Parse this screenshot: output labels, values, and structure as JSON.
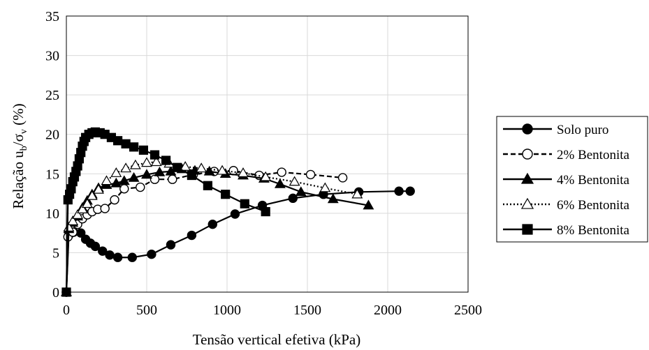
{
  "chart_data": {
    "type": "scatter",
    "title": "",
    "xlabel": "Tensão vertical efetiva (kPa)",
    "ylabel": {
      "main": "Relação u",
      "sub1": "b",
      "mid": "/σ",
      "sub2": "v",
      "end": " (%)"
    },
    "xlim": [
      0,
      2500
    ],
    "ylim": [
      0,
      35
    ],
    "xticks": [
      "0",
      "500",
      "1000",
      "1500",
      "2000",
      "2500"
    ],
    "yticks": [
      "0",
      "5",
      "10",
      "15",
      "20",
      "25",
      "30",
      "35"
    ],
    "grid": true,
    "legend_position": "right",
    "series": [
      {
        "name": "Solo puro",
        "marker": "circle",
        "fill": "filled",
        "dash": "solid",
        "points": [
          [
            0,
            0
          ],
          [
            15,
            7.2
          ],
          [
            45,
            7.6
          ],
          [
            90,
            7.5
          ],
          [
            120,
            6.7
          ],
          [
            150,
            6.2
          ],
          [
            180,
            5.8
          ],
          [
            225,
            5.2
          ],
          [
            270,
            4.7
          ],
          [
            320,
            4.4
          ],
          [
            410,
            4.4
          ],
          [
            530,
            4.8
          ],
          [
            650,
            6.0
          ],
          [
            780,
            7.2
          ],
          [
            910,
            8.6
          ],
          [
            1050,
            9.9
          ],
          [
            1220,
            11.0
          ],
          [
            1410,
            11.9
          ],
          [
            1600,
            12.4
          ],
          [
            1820,
            12.7
          ],
          [
            2070,
            12.8
          ],
          [
            2140,
            12.8
          ]
        ]
      },
      {
        "name": "2% Bentonita",
        "marker": "circle",
        "fill": "open",
        "dash": "dashed",
        "points": [
          [
            0,
            0
          ],
          [
            10,
            7.0
          ],
          [
            40,
            7.6
          ],
          [
            70,
            8.6
          ],
          [
            100,
            9.3
          ],
          [
            130,
            9.8
          ],
          [
            160,
            10.2
          ],
          [
            195,
            10.5
          ],
          [
            240,
            10.6
          ],
          [
            300,
            11.7
          ],
          [
            360,
            13.1
          ],
          [
            460,
            13.3
          ],
          [
            550,
            14.3
          ],
          [
            660,
            14.3
          ],
          [
            790,
            14.9
          ],
          [
            920,
            15.3
          ],
          [
            1040,
            15.4
          ],
          [
            1200,
            14.8
          ],
          [
            1340,
            15.2
          ],
          [
            1520,
            14.9
          ],
          [
            1720,
            14.5
          ]
        ]
      },
      {
        "name": "4% Bentonita",
        "marker": "triangle",
        "fill": "filled",
        "dash": "solid",
        "points": [
          [
            0,
            0
          ],
          [
            15,
            8.0
          ],
          [
            40,
            8.8
          ],
          [
            70,
            9.6
          ],
          [
            100,
            10.7
          ],
          [
            130,
            11.6
          ],
          [
            160,
            12.4
          ],
          [
            200,
            13.2
          ],
          [
            250,
            13.6
          ],
          [
            310,
            13.8
          ],
          [
            360,
            14.1
          ],
          [
            420,
            14.5
          ],
          [
            500,
            14.9
          ],
          [
            580,
            15.2
          ],
          [
            650,
            15.3
          ],
          [
            720,
            15.6
          ],
          [
            800,
            15.4
          ],
          [
            890,
            15.3
          ],
          [
            990,
            15.0
          ],
          [
            1100,
            14.8
          ],
          [
            1230,
            14.4
          ],
          [
            1330,
            13.7
          ],
          [
            1460,
            12.7
          ],
          [
            1660,
            11.8
          ],
          [
            1880,
            11.0
          ]
        ]
      },
      {
        "name": "6% Bentonita",
        "marker": "triangle",
        "fill": "open",
        "dash": "dotted",
        "points": [
          [
            0,
            0
          ],
          [
            15,
            8.2
          ],
          [
            40,
            9.0
          ],
          [
            70,
            9.8
          ],
          [
            100,
            10.5
          ],
          [
            130,
            11.2
          ],
          [
            160,
            12.2
          ],
          [
            200,
            13.0
          ],
          [
            250,
            14.1
          ],
          [
            310,
            15.1
          ],
          [
            370,
            15.7
          ],
          [
            430,
            16.1
          ],
          [
            500,
            16.4
          ],
          [
            560,
            16.5
          ],
          [
            640,
            16.3
          ],
          [
            740,
            15.9
          ],
          [
            840,
            15.7
          ],
          [
            970,
            15.4
          ],
          [
            1100,
            15.1
          ],
          [
            1240,
            14.6
          ],
          [
            1420,
            14.0
          ],
          [
            1610,
            13.2
          ],
          [
            1810,
            12.4
          ]
        ]
      },
      {
        "name": "8% Bentonita",
        "marker": "square",
        "fill": "filled",
        "dash": "solid",
        "points": [
          [
            0,
            0
          ],
          [
            10,
            11.7
          ],
          [
            20,
            12.4
          ],
          [
            30,
            13.1
          ],
          [
            40,
            14.0
          ],
          [
            50,
            14.6
          ],
          [
            60,
            15.3
          ],
          [
            70,
            16.0
          ],
          [
            80,
            16.9
          ],
          [
            90,
            17.7
          ],
          [
            100,
            18.5
          ],
          [
            110,
            19.1
          ],
          [
            120,
            19.6
          ],
          [
            140,
            20.0
          ],
          [
            160,
            20.2
          ],
          [
            180,
            20.3
          ],
          [
            210,
            20.2
          ],
          [
            240,
            20.0
          ],
          [
            280,
            19.6
          ],
          [
            320,
            19.2
          ],
          [
            370,
            18.8
          ],
          [
            420,
            18.4
          ],
          [
            480,
            18.0
          ],
          [
            550,
            17.4
          ],
          [
            620,
            16.7
          ],
          [
            690,
            15.8
          ],
          [
            780,
            14.8
          ],
          [
            880,
            13.5
          ],
          [
            990,
            12.4
          ],
          [
            1110,
            11.2
          ],
          [
            1240,
            10.2
          ]
        ]
      }
    ]
  }
}
